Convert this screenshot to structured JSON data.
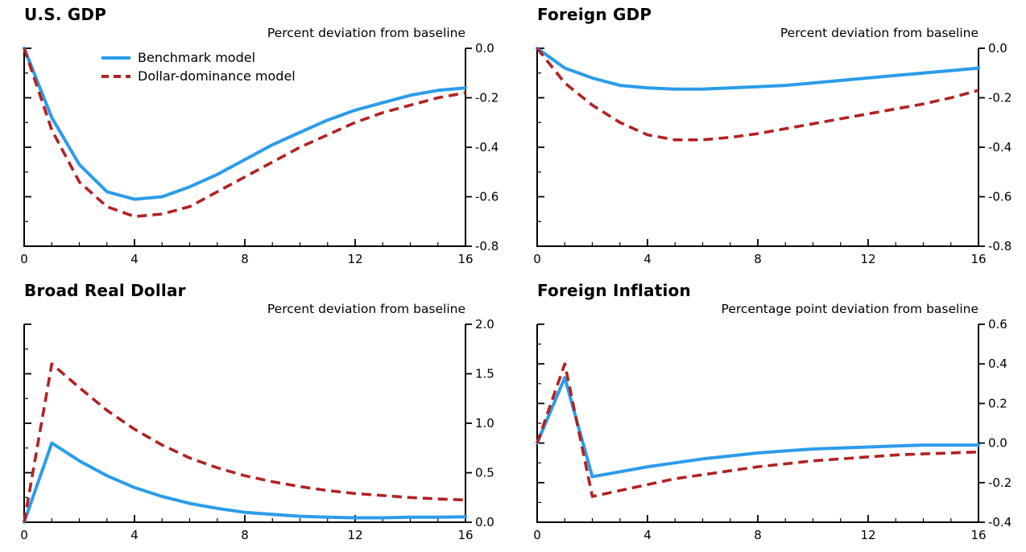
{
  "figure": {
    "legend": {
      "items": [
        {
          "label": "Benchmark model",
          "color": "#2B9CEB",
          "line_style": "solid"
        },
        {
          "label": "Dollar-dominance model",
          "color": "#B22222",
          "line_style": "dashed"
        }
      ]
    }
  },
  "chart_data": [
    {
      "type": "line",
      "title": "U.S. GDP",
      "subtitle": "Percent deviation from baseline",
      "xlim": [
        0,
        16
      ],
      "xticks": [
        0,
        4,
        8,
        12,
        16
      ],
      "ylim": [
        -0.8,
        0.0
      ],
      "yticks": [
        0.0,
        -0.2,
        -0.4,
        -0.6,
        -0.8
      ],
      "x": [
        0,
        1,
        2,
        3,
        4,
        5,
        6,
        7,
        8,
        9,
        10,
        11,
        12,
        13,
        14,
        15,
        16
      ],
      "series": [
        {
          "name": "Benchmark model",
          "color": "#2B9CEB",
          "dash": false,
          "values": [
            0,
            -0.28,
            -0.47,
            -0.58,
            -0.61,
            -0.6,
            -0.56,
            -0.51,
            -0.45,
            -0.39,
            -0.34,
            -0.29,
            -0.25,
            -0.22,
            -0.19,
            -0.17,
            -0.16
          ]
        },
        {
          "name": "Dollar-dominance model",
          "color": "#B22222",
          "dash": true,
          "values": [
            0,
            -0.33,
            -0.54,
            -0.64,
            -0.68,
            -0.67,
            -0.64,
            -0.58,
            -0.52,
            -0.46,
            -0.4,
            -0.35,
            -0.3,
            -0.26,
            -0.23,
            -0.2,
            -0.18
          ]
        }
      ]
    },
    {
      "type": "line",
      "title": "Foreign GDP",
      "subtitle": "Percent deviation from baseline",
      "xlim": [
        0,
        16
      ],
      "xticks": [
        0,
        4,
        8,
        12,
        16
      ],
      "ylim": [
        -0.8,
        0.0
      ],
      "yticks": [
        0.0,
        -0.2,
        -0.4,
        -0.6,
        -0.8
      ],
      "x": [
        0,
        1,
        2,
        3,
        4,
        5,
        6,
        7,
        8,
        9,
        10,
        11,
        12,
        13,
        14,
        15,
        16
      ],
      "series": [
        {
          "name": "Benchmark model",
          "color": "#2B9CEB",
          "dash": false,
          "values": [
            0,
            -0.08,
            -0.12,
            -0.15,
            -0.16,
            -0.165,
            -0.165,
            -0.16,
            -0.155,
            -0.15,
            -0.14,
            -0.13,
            -0.12,
            -0.11,
            -0.1,
            -0.09,
            -0.08
          ]
        },
        {
          "name": "Dollar-dominance model",
          "color": "#B22222",
          "dash": true,
          "values": [
            0,
            -0.14,
            -0.23,
            -0.3,
            -0.35,
            -0.37,
            -0.37,
            -0.36,
            -0.345,
            -0.325,
            -0.305,
            -0.285,
            -0.265,
            -0.245,
            -0.225,
            -0.2,
            -0.17
          ]
        }
      ]
    },
    {
      "type": "line",
      "title": "Broad Real Dollar",
      "subtitle": "Percent deviation from baseline",
      "xlim": [
        0,
        16
      ],
      "xticks": [
        0,
        4,
        8,
        12,
        16
      ],
      "ylim": [
        0.0,
        2.0
      ],
      "yticks": [
        2.0,
        1.5,
        1.0,
        0.5,
        0.0
      ],
      "x": [
        0,
        1,
        2,
        3,
        4,
        5,
        6,
        7,
        8,
        9,
        10,
        11,
        12,
        13,
        14,
        15,
        16
      ],
      "series": [
        {
          "name": "Benchmark model",
          "color": "#2B9CEB",
          "dash": false,
          "values": [
            0,
            0.8,
            0.62,
            0.47,
            0.35,
            0.26,
            0.19,
            0.14,
            0.1,
            0.08,
            0.06,
            0.05,
            0.045,
            0.045,
            0.05,
            0.05,
            0.055
          ]
        },
        {
          "name": "Dollar-dominance model",
          "color": "#B22222",
          "dash": true,
          "values": [
            0,
            1.6,
            1.36,
            1.13,
            0.94,
            0.78,
            0.65,
            0.55,
            0.47,
            0.41,
            0.36,
            0.32,
            0.29,
            0.27,
            0.25,
            0.235,
            0.225
          ]
        }
      ]
    },
    {
      "type": "line",
      "title": "Foreign Inflation",
      "subtitle": "Percentage point deviation from baseline",
      "xlim": [
        0,
        16
      ],
      "xticks": [
        0,
        4,
        8,
        12,
        16
      ],
      "ylim": [
        -0.4,
        0.6
      ],
      "yticks": [
        0.6,
        0.4,
        0.2,
        0.0,
        -0.2,
        -0.4
      ],
      "x": [
        0,
        1,
        2,
        3,
        4,
        5,
        6,
        7,
        8,
        9,
        10,
        11,
        12,
        13,
        14,
        15,
        16
      ],
      "series": [
        {
          "name": "Benchmark model",
          "color": "#2B9CEB",
          "dash": false,
          "values": [
            0.0,
            0.33,
            -0.17,
            -0.145,
            -0.12,
            -0.1,
            -0.08,
            -0.065,
            -0.05,
            -0.04,
            -0.03,
            -0.025,
            -0.02,
            -0.015,
            -0.01,
            -0.01,
            -0.01
          ]
        },
        {
          "name": "Dollar-dominance model",
          "color": "#B22222",
          "dash": true,
          "values": [
            0.0,
            0.4,
            -0.27,
            -0.24,
            -0.21,
            -0.18,
            -0.16,
            -0.14,
            -0.12,
            -0.105,
            -0.09,
            -0.08,
            -0.07,
            -0.06,
            -0.055,
            -0.05,
            -0.045
          ]
        }
      ]
    }
  ]
}
